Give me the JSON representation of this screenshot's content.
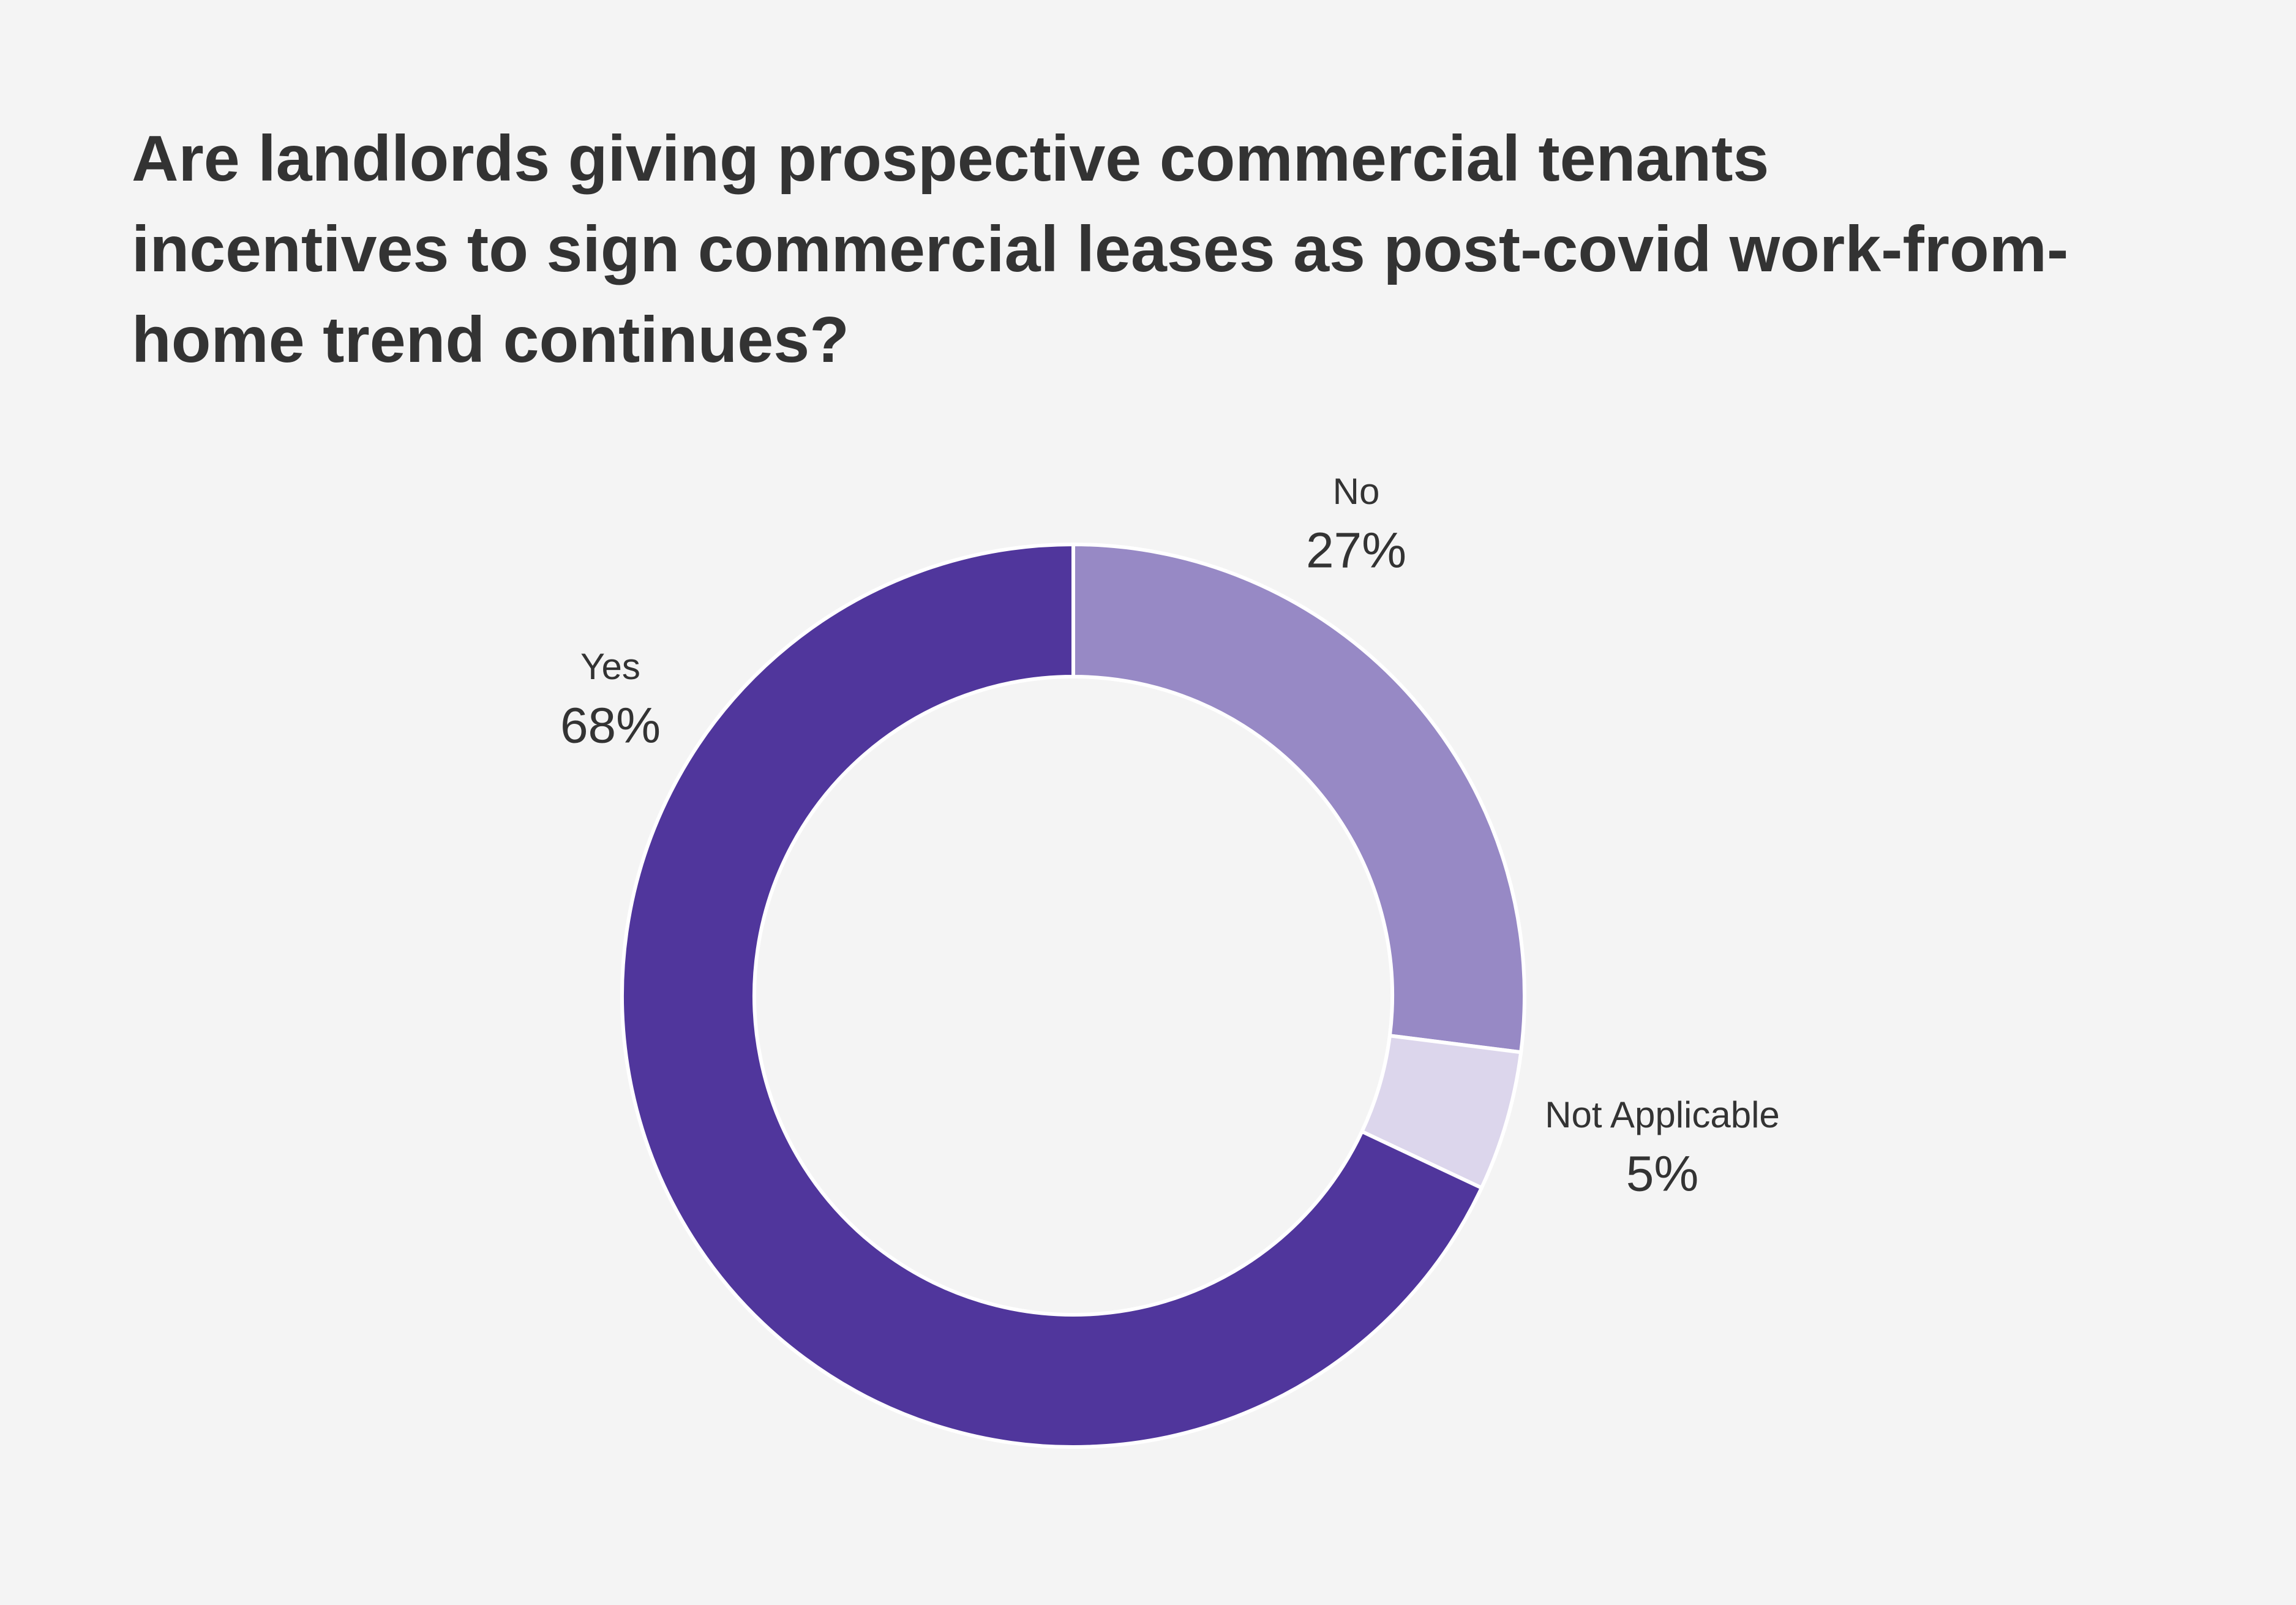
{
  "chart_data": {
    "type": "donut",
    "title": "Are landlords giving prospective commercial tenants incentives to sign commercial leases as post-covid work-from-home trend continues?",
    "categories": [
      "No",
      "Not Applicable",
      "Yes"
    ],
    "values": [
      27,
      5,
      68
    ],
    "value_labels": [
      "27%",
      "5%",
      "68%"
    ],
    "colors": [
      "#9789c5",
      "#dcd6ec",
      "#50369c"
    ]
  }
}
